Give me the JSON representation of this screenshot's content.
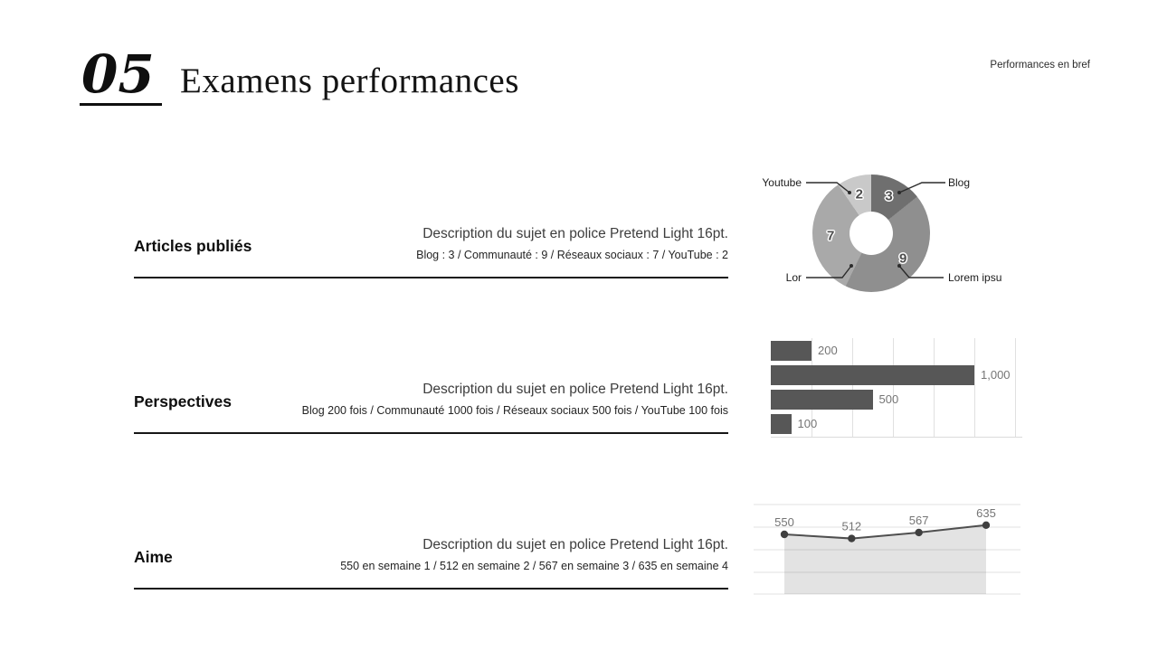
{
  "header": {
    "number": "05",
    "title": "Examens performances",
    "corner_note": "Performances en bref"
  },
  "sections": [
    {
      "heading": "Articles publiés",
      "description": "Description du sujet en police Pretend Light 16pt.",
      "detail": "Blog : 3 / Communauté : 9 / Réseaux sociaux : 7 / YouTube : 2"
    },
    {
      "heading": "Perspectives",
      "description": "Description du sujet en police Pretend Light 16pt.",
      "detail": "Blog 200 fois / Communauté 1000 fois / Réseaux sociaux 500 fois / YouTube 100 fois"
    },
    {
      "heading": "Aime",
      "description": "Description du sujet en police Pretend Light 16pt.",
      "detail": "550 en semaine 1 / 512 en semaine 2 / 567 en semaine 3 / 635 en semaine 4"
    }
  ],
  "chart_data": [
    {
      "type": "pie",
      "subtype": "donut",
      "labels": [
        "Blog",
        "Lorem ipsu",
        "Lor",
        "Youtube"
      ],
      "values": [
        3,
        9,
        7,
        2
      ],
      "colors": [
        "#6f6f6f",
        "#8f8f8f",
        "#a9a9a9",
        "#c9c9c9"
      ],
      "legend_position": "callouts",
      "callout_labels": {
        "top_left": "Youtube",
        "top_right": "Blog",
        "bottom_left": "Lor",
        "bottom_right": "Lorem ipsu"
      }
    },
    {
      "type": "bar",
      "orientation": "horizontal",
      "categories": [
        "Blog",
        "Communauté",
        "Réseaux sociaux",
        "YouTube"
      ],
      "values": [
        200,
        1000,
        500,
        100
      ],
      "value_labels": [
        "200",
        "1,000",
        "500",
        "100"
      ],
      "bar_color": "#575757",
      "grid_color": "#e0e0e0",
      "label_color": "#757575",
      "xlim": [
        0,
        1200
      ],
      "grid_step": 200,
      "grid": true
    },
    {
      "type": "area",
      "x": [
        "semaine 1",
        "semaine 2",
        "semaine 3",
        "semaine 4"
      ],
      "values": [
        550,
        512,
        567,
        635
      ],
      "value_labels": [
        "550",
        "512",
        "567",
        "635"
      ],
      "line_color": "#4f4f4f",
      "dot_color": "#3f3f3f",
      "fill_color": "rgba(0,0,0,0.11)",
      "grid_color": "#e2e2e2",
      "label_color": "#757575",
      "ylim": [
        0,
        875
      ],
      "grid": true
    }
  ]
}
